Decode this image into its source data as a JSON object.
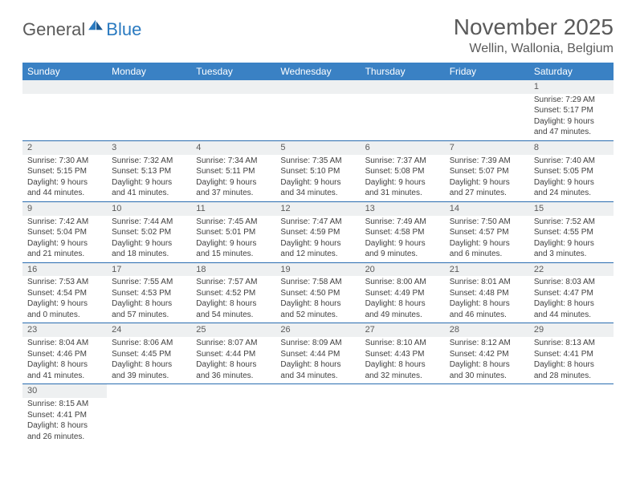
{
  "logo": {
    "part1": "General",
    "part2": "Blue"
  },
  "title": "November 2025",
  "location": "Wellin, Wallonia, Belgium",
  "colors": {
    "header_bg": "#3a81c4",
    "header_text": "#ffffff",
    "daynum_bg": "#eef0f1",
    "border": "#2a6db0",
    "text": "#404040",
    "title_text": "#5a5a5a",
    "logo_gray": "#5a5a5a",
    "logo_blue": "#2a7ac0"
  },
  "weekdays": [
    "Sunday",
    "Monday",
    "Tuesday",
    "Wednesday",
    "Thursday",
    "Friday",
    "Saturday"
  ],
  "weeks": [
    [
      null,
      null,
      null,
      null,
      null,
      null,
      {
        "d": "1",
        "sr": "7:29 AM",
        "ss": "5:17 PM",
        "dl": "9 hours and 47 minutes."
      }
    ],
    [
      {
        "d": "2",
        "sr": "7:30 AM",
        "ss": "5:15 PM",
        "dl": "9 hours and 44 minutes."
      },
      {
        "d": "3",
        "sr": "7:32 AM",
        "ss": "5:13 PM",
        "dl": "9 hours and 41 minutes."
      },
      {
        "d": "4",
        "sr": "7:34 AM",
        "ss": "5:11 PM",
        "dl": "9 hours and 37 minutes."
      },
      {
        "d": "5",
        "sr": "7:35 AM",
        "ss": "5:10 PM",
        "dl": "9 hours and 34 minutes."
      },
      {
        "d": "6",
        "sr": "7:37 AM",
        "ss": "5:08 PM",
        "dl": "9 hours and 31 minutes."
      },
      {
        "d": "7",
        "sr": "7:39 AM",
        "ss": "5:07 PM",
        "dl": "9 hours and 27 minutes."
      },
      {
        "d": "8",
        "sr": "7:40 AM",
        "ss": "5:05 PM",
        "dl": "9 hours and 24 minutes."
      }
    ],
    [
      {
        "d": "9",
        "sr": "7:42 AM",
        "ss": "5:04 PM",
        "dl": "9 hours and 21 minutes."
      },
      {
        "d": "10",
        "sr": "7:44 AM",
        "ss": "5:02 PM",
        "dl": "9 hours and 18 minutes."
      },
      {
        "d": "11",
        "sr": "7:45 AM",
        "ss": "5:01 PM",
        "dl": "9 hours and 15 minutes."
      },
      {
        "d": "12",
        "sr": "7:47 AM",
        "ss": "4:59 PM",
        "dl": "9 hours and 12 minutes."
      },
      {
        "d": "13",
        "sr": "7:49 AM",
        "ss": "4:58 PM",
        "dl": "9 hours and 9 minutes."
      },
      {
        "d": "14",
        "sr": "7:50 AM",
        "ss": "4:57 PM",
        "dl": "9 hours and 6 minutes."
      },
      {
        "d": "15",
        "sr": "7:52 AM",
        "ss": "4:55 PM",
        "dl": "9 hours and 3 minutes."
      }
    ],
    [
      {
        "d": "16",
        "sr": "7:53 AM",
        "ss": "4:54 PM",
        "dl": "9 hours and 0 minutes."
      },
      {
        "d": "17",
        "sr": "7:55 AM",
        "ss": "4:53 PM",
        "dl": "8 hours and 57 minutes."
      },
      {
        "d": "18",
        "sr": "7:57 AM",
        "ss": "4:52 PM",
        "dl": "8 hours and 54 minutes."
      },
      {
        "d": "19",
        "sr": "7:58 AM",
        "ss": "4:50 PM",
        "dl": "8 hours and 52 minutes."
      },
      {
        "d": "20",
        "sr": "8:00 AM",
        "ss": "4:49 PM",
        "dl": "8 hours and 49 minutes."
      },
      {
        "d": "21",
        "sr": "8:01 AM",
        "ss": "4:48 PM",
        "dl": "8 hours and 46 minutes."
      },
      {
        "d": "22",
        "sr": "8:03 AM",
        "ss": "4:47 PM",
        "dl": "8 hours and 44 minutes."
      }
    ],
    [
      {
        "d": "23",
        "sr": "8:04 AM",
        "ss": "4:46 PM",
        "dl": "8 hours and 41 minutes."
      },
      {
        "d": "24",
        "sr": "8:06 AM",
        "ss": "4:45 PM",
        "dl": "8 hours and 39 minutes."
      },
      {
        "d": "25",
        "sr": "8:07 AM",
        "ss": "4:44 PM",
        "dl": "8 hours and 36 minutes."
      },
      {
        "d": "26",
        "sr": "8:09 AM",
        "ss": "4:44 PM",
        "dl": "8 hours and 34 minutes."
      },
      {
        "d": "27",
        "sr": "8:10 AM",
        "ss": "4:43 PM",
        "dl": "8 hours and 32 minutes."
      },
      {
        "d": "28",
        "sr": "8:12 AM",
        "ss": "4:42 PM",
        "dl": "8 hours and 30 minutes."
      },
      {
        "d": "29",
        "sr": "8:13 AM",
        "ss": "4:41 PM",
        "dl": "8 hours and 28 minutes."
      }
    ],
    [
      {
        "d": "30",
        "sr": "8:15 AM",
        "ss": "4:41 PM",
        "dl": "8 hours and 26 minutes."
      },
      null,
      null,
      null,
      null,
      null,
      null
    ]
  ],
  "labels": {
    "sunrise": "Sunrise:",
    "sunset": "Sunset:",
    "daylight": "Daylight:"
  }
}
